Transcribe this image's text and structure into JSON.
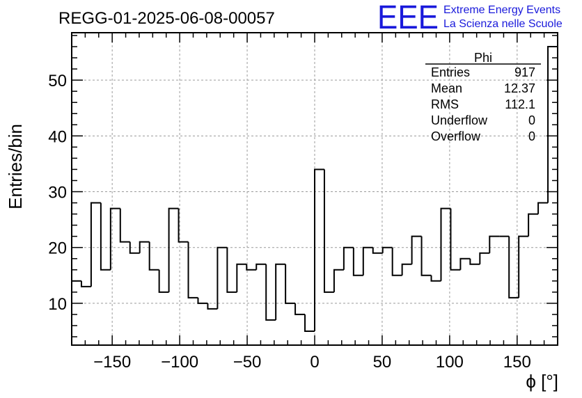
{
  "chart_data": {
    "type": "histogram",
    "title": "REGG-01-2025-06-08-00057",
    "xlabel": "ϕ [°]",
    "ylabel": "Entries/bin",
    "xlim": [
      -180,
      180
    ],
    "ylim": [
      2.5,
      58.5
    ],
    "bin_width": 7.2,
    "grid": true,
    "x_ticks": [
      -150,
      -100,
      -50,
      0,
      50,
      100,
      150
    ],
    "x_tick_labels": [
      "−150",
      "−100",
      "−50",
      "0",
      "50",
      "100",
      "150"
    ],
    "y_ticks": [
      10,
      20,
      30,
      40,
      50
    ],
    "y_tick_labels": [
      "10",
      "20",
      "30",
      "40",
      "50"
    ],
    "bin_edges_start": -180,
    "values": [
      14,
      13,
      28,
      16,
      27,
      21,
      19,
      21,
      16,
      12,
      27,
      21,
      11,
      10,
      9,
      20,
      12,
      17,
      16,
      17,
      7,
      17,
      10,
      8,
      5,
      34,
      12,
      16,
      20,
      15,
      20,
      19,
      20,
      15,
      17,
      22,
      15,
      14,
      27,
      16,
      18,
      17,
      19,
      22,
      22,
      11,
      22,
      26,
      28,
      56
    ],
    "stats": {
      "title": "Phi",
      "rows": [
        {
          "label": "Entries",
          "value": "917"
        },
        {
          "label": "Mean",
          "value": "12.37"
        },
        {
          "label": "RMS",
          "value": "112.1"
        },
        {
          "label": "Underflow",
          "value": "0"
        },
        {
          "label": "Overflow",
          "value": "0"
        }
      ]
    }
  },
  "logo": {
    "mark": "EEE",
    "line1": "Extreme Energy Events",
    "line2": "La Scienza nelle Scuole"
  },
  "colors": {
    "line": "#000000",
    "grid": "#9a9a9a",
    "logo": "#1a1adb"
  }
}
